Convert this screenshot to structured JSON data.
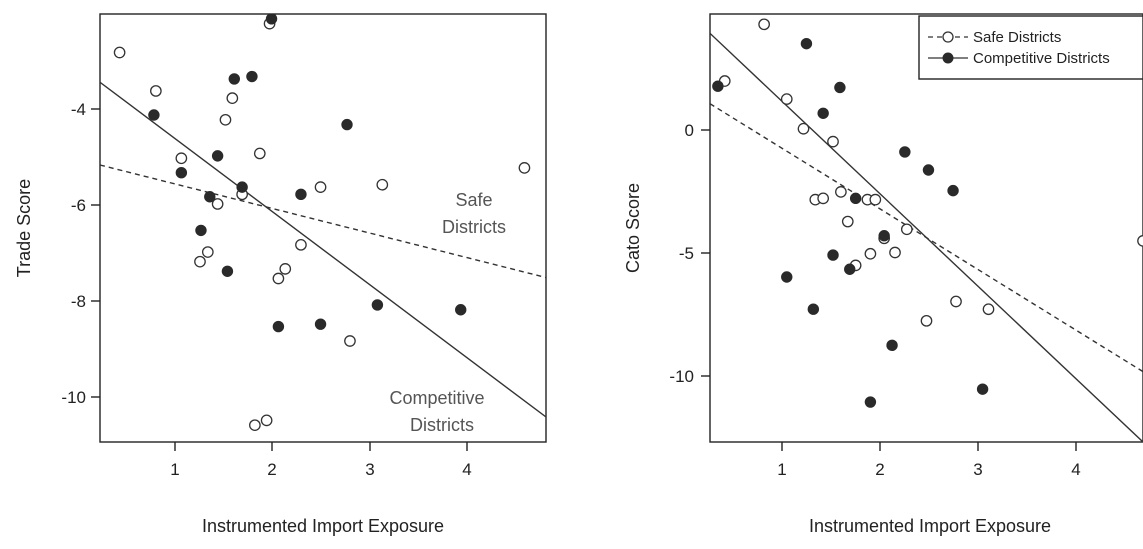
{
  "chart_data": [
    {
      "type": "scatter",
      "title": "",
      "xlabel": "Instrumented Import Exposure",
      "ylabel": "Trade Score",
      "xlim": [
        0.25,
        4.8
      ],
      "ylim": [
        -11.0,
        -2.1
      ],
      "x_ticks": [
        "1",
        "2",
        "3",
        "4"
      ],
      "y_ticks": [
        "-4",
        "-6",
        "-8",
        "-10"
      ],
      "annotations": [
        {
          "text": "Safe",
          "x": 4.0,
          "y": -5.9
        },
        {
          "text": "Districts",
          "x": 4.0,
          "y": -6.45
        },
        {
          "text": "Competitive",
          "x": 4.0,
          "y": -9.05
        },
        {
          "text": "Districts",
          "x": 4.0,
          "y": -9.6
        }
      ],
      "series": [
        {
          "name": "Safe Districts",
          "marker": "open-circle",
          "points": [
            [
              0.45,
              -2.9
            ],
            [
              0.82,
              -3.7
            ],
            [
              1.08,
              -5.1
            ],
            [
              1.27,
              -7.25
            ],
            [
              1.35,
              -7.05
            ],
            [
              1.45,
              -6.05
            ],
            [
              1.53,
              -4.3
            ],
            [
              1.6,
              -3.85
            ],
            [
              1.7,
              -5.85
            ],
            [
              1.88,
              -5.0
            ],
            [
              1.95,
              -10.55
            ],
            [
              1.98,
              -2.3
            ],
            [
              1.83,
              -10.65
            ],
            [
              2.07,
              -7.6
            ],
            [
              2.14,
              -7.4
            ],
            [
              2.3,
              -6.9
            ],
            [
              2.5,
              -5.7
            ],
            [
              2.8,
              -8.9
            ],
            [
              3.13,
              -5.65
            ],
            [
              4.58,
              -5.3
            ]
          ],
          "fit": [
            [
              0.25,
              -5.24
            ],
            [
              4.8,
              -7.58
            ]
          ]
        },
        {
          "name": "Competitive Districts",
          "marker": "filled-circle",
          "points": [
            [
              0.8,
              -4.2
            ],
            [
              1.08,
              -5.4
            ],
            [
              1.28,
              -6.6
            ],
            [
              1.37,
              -5.9
            ],
            [
              1.45,
              -5.05
            ],
            [
              1.55,
              -7.45
            ],
            [
              1.62,
              -3.45
            ],
            [
              1.7,
              -5.7
            ],
            [
              1.8,
              -3.4
            ],
            [
              2.0,
              -2.2
            ],
            [
              2.07,
              -8.6
            ],
            [
              2.3,
              -5.85
            ],
            [
              2.5,
              -8.55
            ],
            [
              2.77,
              -4.4
            ],
            [
              3.08,
              -8.15
            ],
            [
              3.93,
              -8.25
            ]
          ],
          "fit": [
            [
              0.25,
              -3.52
            ],
            [
              4.8,
              -10.48
            ]
          ]
        }
      ]
    },
    {
      "type": "scatter",
      "title": "",
      "xlabel": "Instrumented Import Exposure",
      "ylabel": "Cato Score",
      "xlim": [
        0.3,
        4.7
      ],
      "ylim": [
        -12.6,
        4.0
      ],
      "x_ticks": [
        "1",
        "2",
        "3",
        "4"
      ],
      "y_ticks": [
        "0",
        "-5",
        "-10"
      ],
      "legend_position": "top-right",
      "series": [
        {
          "name": "Safe Districts",
          "marker": "open-circle",
          "line_style": "dashed",
          "points": [
            [
              0.45,
              1.4
            ],
            [
              0.85,
              3.6
            ],
            [
              1.08,
              0.7
            ],
            [
              1.25,
              -0.45
            ],
            [
              1.37,
              -3.2
            ],
            [
              1.45,
              -3.15
            ],
            [
              1.55,
              -0.95
            ],
            [
              1.63,
              -2.9
            ],
            [
              1.7,
              -4.05
            ],
            [
              1.78,
              -5.75
            ],
            [
              1.9,
              -3.2
            ],
            [
              1.93,
              -5.3
            ],
            [
              1.98,
              -3.2
            ],
            [
              2.07,
              -4.7
            ],
            [
              2.18,
              -5.25
            ],
            [
              2.3,
              -4.35
            ],
            [
              2.5,
              -7.9
            ],
            [
              2.8,
              -7.15
            ],
            [
              3.13,
              -7.45
            ],
            [
              4.7,
              -4.8
            ]
          ],
          "fit": [
            [
              0.3,
              0.52
            ],
            [
              4.7,
              -9.87
            ]
          ]
        },
        {
          "name": "Competitive Districts",
          "marker": "filled-circle",
          "line_style": "solid",
          "points": [
            [
              0.38,
              1.2
            ],
            [
              1.08,
              -6.2
            ],
            [
              1.28,
              2.85
            ],
            [
              1.35,
              -7.45
            ],
            [
              1.45,
              0.15
            ],
            [
              1.55,
              -5.35
            ],
            [
              1.62,
              1.15
            ],
            [
              1.72,
              -5.9
            ],
            [
              1.78,
              -3.15
            ],
            [
              1.93,
              -11.05
            ],
            [
              2.07,
              -4.6
            ],
            [
              2.15,
              -8.85
            ],
            [
              2.28,
              -1.35
            ],
            [
              2.52,
              -2.05
            ],
            [
              2.77,
              -2.85
            ],
            [
              3.07,
              -10.55
            ]
          ],
          "fit": [
            [
              0.3,
              3.25
            ],
            [
              4.7,
              -12.6
            ]
          ]
        }
      ]
    }
  ]
}
